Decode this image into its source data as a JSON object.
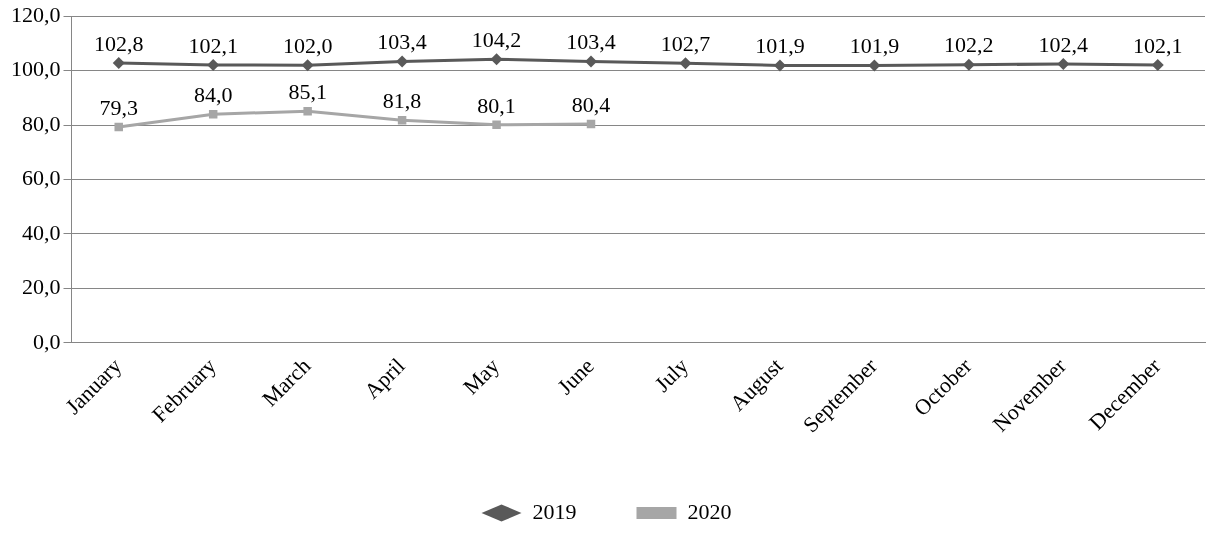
{
  "chart_data": {
    "type": "line",
    "categories": [
      "January",
      "February",
      "March",
      "April",
      "May",
      "June",
      "July",
      "August",
      "September",
      "October",
      "November",
      "December"
    ],
    "series": [
      {
        "name": "2019",
        "color": "#595959",
        "marker": "diamond",
        "values": [
          102.8,
          102.1,
          102.0,
          103.4,
          104.2,
          103.4,
          102.7,
          101.9,
          101.9,
          102.2,
          102.4,
          102.1
        ],
        "value_labels": [
          "102,8",
          "102,1",
          "102,0",
          "103,4",
          "104,2",
          "103,4",
          "102,7",
          "101,9",
          "101,9",
          "102,2",
          "102,4",
          "102,1"
        ]
      },
      {
        "name": "2020",
        "color": "#a6a6a6",
        "marker": "square",
        "values": [
          79.3,
          84.0,
          85.1,
          81.8,
          80.1,
          80.4,
          null,
          null,
          null,
          null,
          null,
          null
        ],
        "value_labels": [
          "79,3",
          "84,0",
          "85,1",
          "81,8",
          "80,1",
          "80,4",
          null,
          null,
          null,
          null,
          null,
          null
        ]
      }
    ],
    "ylim": [
      0,
      120
    ],
    "yticks": [
      {
        "value": 0,
        "label": "0,0"
      },
      {
        "value": 20,
        "label": "20,0"
      },
      {
        "value": 40,
        "label": "40,0"
      },
      {
        "value": 60,
        "label": "60,0"
      },
      {
        "value": 80,
        "label": "80,0"
      },
      {
        "value": 100,
        "label": "100,0"
      },
      {
        "value": 120,
        "label": "120,0"
      }
    ],
    "grid": "y",
    "legend": "bottom",
    "line_style": "solid"
  }
}
